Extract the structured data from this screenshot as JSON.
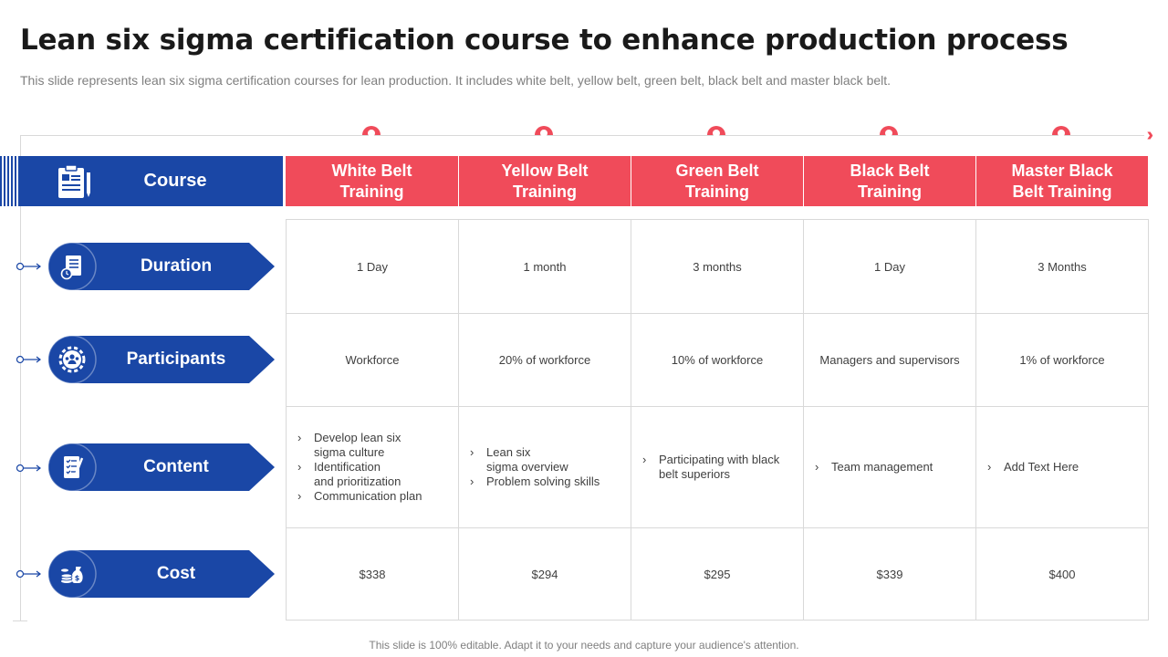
{
  "title": "Lean six sigma certification course to enhance production process",
  "subtitle": "This slide represents lean six sigma certification courses for lean production. It includes white belt, yellow belt, green belt, black belt and master black belt.",
  "course_label": "Course",
  "columns": [
    {
      "l1": "White Belt",
      "l2": "Training"
    },
    {
      "l1": "Yellow Belt",
      "l2": "Training"
    },
    {
      "l1": "Green Belt",
      "l2": "Training"
    },
    {
      "l1": "Black Belt",
      "l2": "Training"
    },
    {
      "l1": "Master Black",
      "l2": "Belt Training"
    }
  ],
  "rows": [
    {
      "label": "Duration",
      "icon": "document-clock-icon",
      "cells": [
        "1 Day",
        "1 month",
        "3 months",
        "1 Day",
        "3 Months"
      ]
    },
    {
      "label": "Participants",
      "icon": "team-gear-icon",
      "cells": [
        "Workforce",
        "20% of workforce",
        "10% of workforce",
        "Managers and supervisors",
        "1% of workforce"
      ]
    },
    {
      "label": "Content",
      "icon": "checklist-pen-icon",
      "content": [
        [
          [
            "Develop lean six",
            "sigma culture"
          ],
          [
            "Identification",
            "and prioritization"
          ],
          [
            "Communication plan"
          ]
        ],
        [
          [
            "Lean six",
            "sigma overview"
          ],
          [
            "Problem solving skills"
          ]
        ],
        [
          [
            "Participating with black",
            "belt superiors"
          ]
        ],
        [
          [
            "Team management"
          ]
        ],
        [
          [
            "Add Text Here"
          ]
        ]
      ]
    },
    {
      "label": "Cost",
      "icon": "money-bag-coins-icon",
      "cells": [
        "$338",
        "$294",
        "$295",
        "$339",
        "$400"
      ]
    }
  ],
  "footer": "This slide is 100% editable. Adapt it to your needs and capture your audience's attention.",
  "colors": {
    "accent_red": "#f04b5a",
    "brand_blue": "#1a47a6",
    "grid": "#d9d9d9"
  }
}
